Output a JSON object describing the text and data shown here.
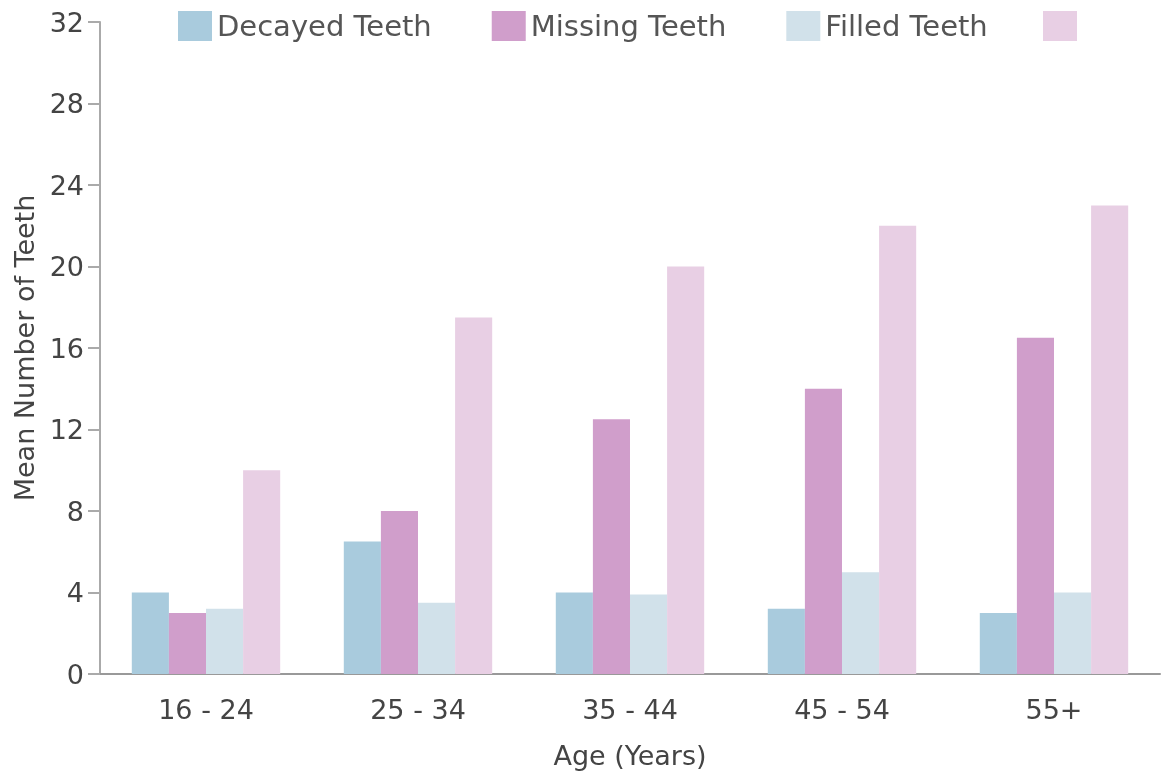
{
  "chart_data": {
    "type": "bar",
    "xlabel": "Age (Years)",
    "ylabel": "Mean Number of Teeth",
    "categories": [
      "16 - 24",
      "25 - 34",
      "35 - 44",
      "45 - 54",
      "55+"
    ],
    "series": [
      {
        "name": "Decayed Teeth",
        "color": "#a9cbdd",
        "values": [
          4.0,
          6.5,
          4.0,
          3.2,
          3.0
        ]
      },
      {
        "name": "Missing Teeth",
        "color": "#d09ecb",
        "values": [
          3.0,
          8.0,
          12.5,
          14.0,
          16.5
        ]
      },
      {
        "name": "Filled Teeth",
        "color": "#d1e1ea",
        "values": [
          3.2,
          3.5,
          3.9,
          5.0,
          4.0
        ]
      },
      {
        "color": "#e8cfe4",
        "values": [
          10.0,
          17.5,
          20.0,
          22.0,
          23.0
        ]
      }
    ],
    "ylim": [
      0,
      32
    ],
    "yticks": [
      0,
      4,
      8,
      12,
      16,
      20,
      24,
      28,
      32
    ],
    "grid": false,
    "legend": "top"
  }
}
